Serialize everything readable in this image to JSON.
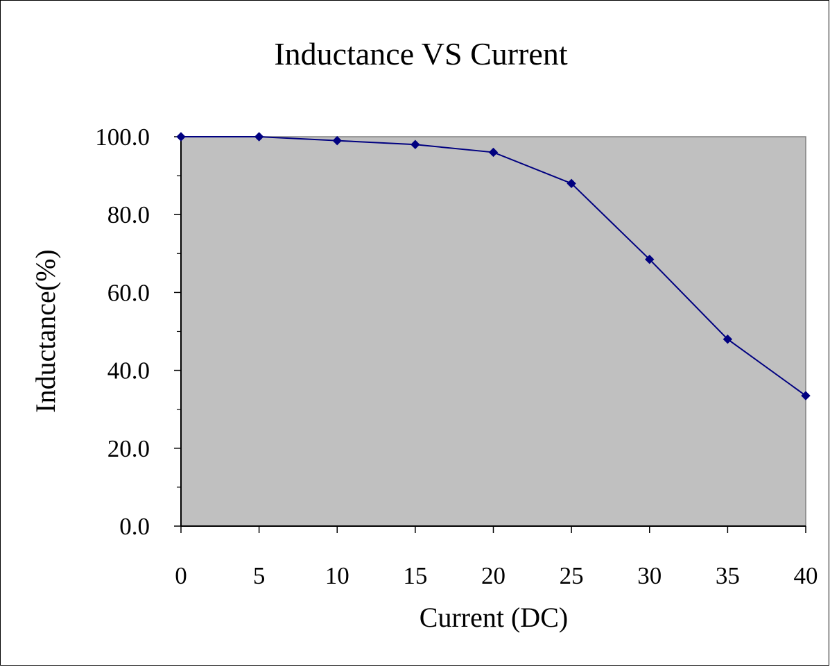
{
  "chart_data": {
    "type": "line",
    "title": "Inductance VS Current",
    "xlabel": "Current (DC)",
    "ylabel": "Inductance(%)",
    "x": [
      0,
      5,
      10,
      15,
      20,
      25,
      30,
      35,
      40
    ],
    "series": [
      {
        "values": [
          100.0,
          100.0,
          99.0,
          98.0,
          96.0,
          88.0,
          68.5,
          48.0,
          33.5
        ]
      }
    ],
    "xlim": [
      0,
      40
    ],
    "ylim": [
      0,
      100
    ],
    "x_ticks": [
      "0",
      "5",
      "10",
      "15",
      "20",
      "25",
      "30",
      "35",
      "40"
    ],
    "y_ticks": [
      "0.0",
      "20.0",
      "40.0",
      "60.0",
      "80.0",
      "100.0"
    ],
    "grid": false,
    "legend": "none",
    "colors": {
      "plot_background": "#c0c0c0",
      "line": "#000080",
      "marker": "#000080",
      "axis": "#000000",
      "frame": "#000000"
    }
  }
}
